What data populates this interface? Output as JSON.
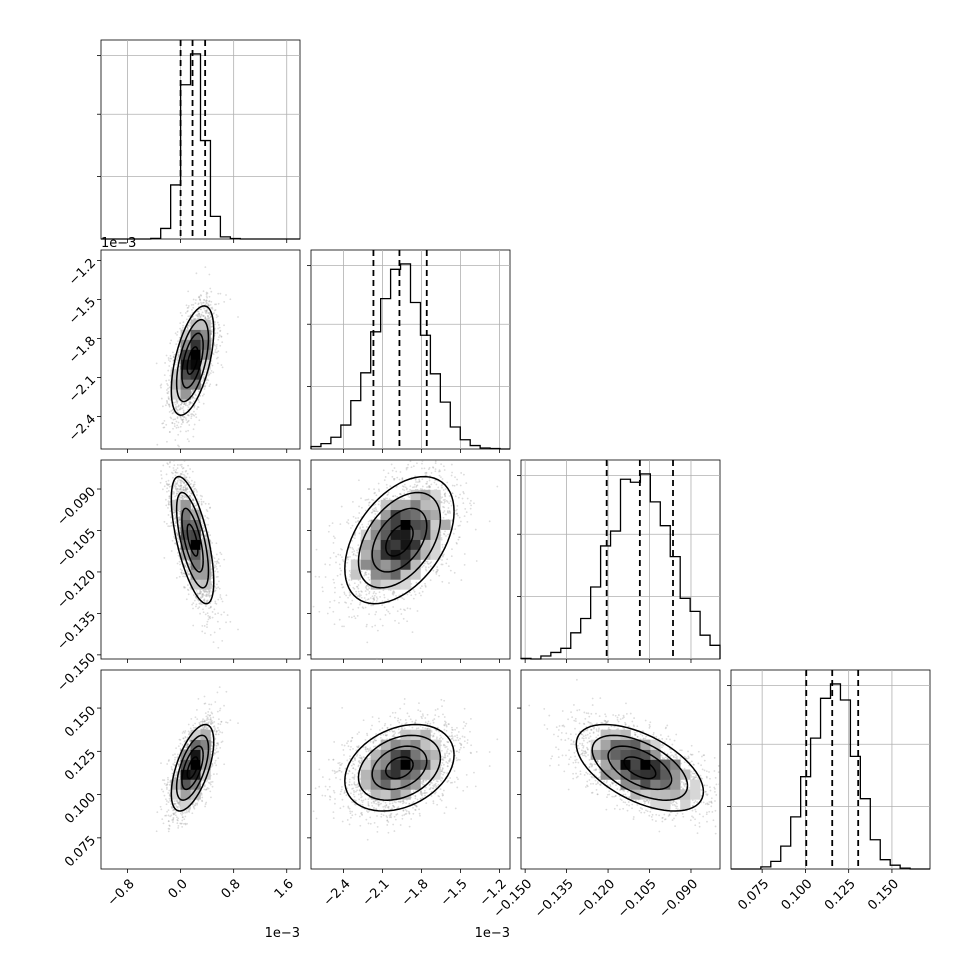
{
  "chart_data": {
    "type": "corner",
    "parameters": [
      {
        "range": [
          -1.2,
          1.8
        ],
        "ticks": [
          -0.8,
          0.0,
          0.8,
          1.6
        ],
        "tick_labels": [
          "−0.8",
          "0.0",
          "0.8",
          "1.6"
        ],
        "offset_text": "1e−3",
        "center": 0.00018,
        "sd": 0.00016
      },
      {
        "range": [
          -2.65,
          -1.12
        ],
        "ticks": [
          -2.4,
          -2.1,
          -1.8,
          -1.5,
          -1.2
        ],
        "tick_labels": [
          "−2.4",
          "−2.1",
          "−1.8",
          "−1.5",
          "−1.2"
        ],
        "offset_text": "1e−3",
        "center": -0.00197,
        "sd": 0.00021
      },
      {
        "range": [
          -0.1515,
          -0.0795
        ],
        "ticks": [
          -0.15,
          -0.135,
          -0.12,
          -0.105,
          -0.09
        ],
        "tick_labels": [
          "−0.150",
          "−0.135",
          "−0.120",
          "−0.105",
          "−0.090"
        ],
        "offset_text": "",
        "center": -0.1085,
        "sd": 0.0115
      },
      {
        "range": [
          0.057,
          0.172
        ],
        "ticks": [
          0.075,
          0.1,
          0.125,
          0.15
        ],
        "tick_labels": [
          "0.075",
          "0.100",
          "0.125",
          "0.150"
        ],
        "offset_text": "",
        "center": 0.1155,
        "sd": 0.0125
      }
    ],
    "scales": [
      0.001,
      0.001,
      1,
      1
    ],
    "quantiles": [
      [
        0.0,
        0.00018,
        0.00037
      ],
      [
        -0.00217,
        -0.00197,
        -0.00176
      ],
      [
        -0.1205,
        -0.1085,
        -0.0965
      ],
      [
        0.1005,
        0.1155,
        0.1305
      ]
    ],
    "correlations": {
      "1-0": 0.55,
      "2-0": -0.65,
      "2-1": 0.45,
      "3-0": 0.6,
      "3-1": 0.3,
      "3-2": -0.55
    },
    "grid": true,
    "colors": {
      "line": "#000000",
      "points": "#9a9a9a",
      "grid": "#b0b0b0"
    }
  }
}
